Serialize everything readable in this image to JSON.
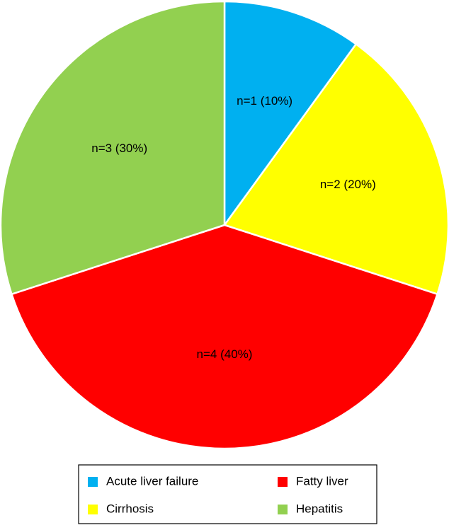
{
  "chart_data": {
    "type": "pie",
    "categories": [
      "Acute liver failure",
      "Cirrhosis",
      "Fatty liver",
      "Hepatitis"
    ],
    "values": [
      10,
      20,
      40,
      30
    ],
    "value_labels": [
      "n=1 (10%)",
      "n=2 (20%)",
      "n=4 (40%)",
      "n=3 (30%)"
    ],
    "colors": [
      "#00b0f0",
      "#ffff00",
      "#ff0000",
      "#92d050"
    ],
    "legend": "bottom"
  }
}
